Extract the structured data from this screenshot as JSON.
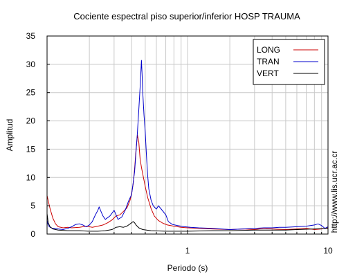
{
  "chart_data": {
    "type": "line",
    "title": "Cociente espectral piso superior/inferior  HOSP TRAUMA",
    "xlabel": "Periodo (s)",
    "ylabel": "Amplitud",
    "x_scale": "log",
    "xlim": [
      0.1,
      10
    ],
    "ylim": [
      0,
      35
    ],
    "x_ticks": [
      {
        "value": 1,
        "label": "1"
      },
      {
        "value": 10,
        "label": "10"
      }
    ],
    "y_ticks": [
      {
        "value": 0,
        "label": "0"
      },
      {
        "value": 5,
        "label": "5"
      },
      {
        "value": 10,
        "label": "10"
      },
      {
        "value": 15,
        "label": "15"
      },
      {
        "value": 20,
        "label": "20"
      },
      {
        "value": 25,
        "label": "25"
      },
      {
        "value": 30,
        "label": "30"
      },
      {
        "value": 35,
        "label": "35"
      }
    ],
    "grid": true,
    "legend_position": "top-right",
    "series": [
      {
        "name": "LONG",
        "color": "#cc0000",
        "points": [
          [
            0.1,
            6.8
          ],
          [
            0.105,
            4.5
          ],
          [
            0.11,
            2.8
          ],
          [
            0.115,
            1.8
          ],
          [
            0.12,
            1.3
          ],
          [
            0.13,
            1.1
          ],
          [
            0.14,
            1.2
          ],
          [
            0.15,
            1.1
          ],
          [
            0.17,
            1.2
          ],
          [
            0.19,
            1.4
          ],
          [
            0.21,
            1.2
          ],
          [
            0.23,
            1.4
          ],
          [
            0.25,
            1.6
          ],
          [
            0.27,
            2.0
          ],
          [
            0.29,
            2.5
          ],
          [
            0.31,
            3.2
          ],
          [
            0.33,
            3.4
          ],
          [
            0.35,
            4.0
          ],
          [
            0.37,
            4.6
          ],
          [
            0.38,
            5.3
          ],
          [
            0.39,
            6.0
          ],
          [
            0.4,
            7.2
          ],
          [
            0.41,
            8.8
          ],
          [
            0.42,
            11.5
          ],
          [
            0.43,
            15.0
          ],
          [
            0.44,
            17.5
          ],
          [
            0.45,
            16.2
          ],
          [
            0.46,
            13.2
          ],
          [
            0.47,
            11.8
          ],
          [
            0.48,
            10.6
          ],
          [
            0.5,
            8.4
          ],
          [
            0.52,
            6.5
          ],
          [
            0.55,
            4.5
          ],
          [
            0.58,
            3.2
          ],
          [
            0.62,
            2.4
          ],
          [
            0.67,
            1.9
          ],
          [
            0.72,
            1.6
          ],
          [
            0.8,
            1.4
          ],
          [
            0.9,
            1.2
          ],
          [
            1.0,
            1.1
          ],
          [
            1.2,
            1.0
          ],
          [
            1.5,
            0.9
          ],
          [
            2.0,
            0.8
          ],
          [
            2.5,
            0.9
          ],
          [
            3.0,
            0.8
          ],
          [
            3.5,
            1.0
          ],
          [
            4.0,
            0.9
          ],
          [
            5.0,
            0.8
          ],
          [
            6.0,
            0.9
          ],
          [
            7.0,
            1.0
          ],
          [
            8.0,
            0.8
          ],
          [
            9.0,
            0.9
          ],
          [
            10.0,
            1.1
          ]
        ]
      },
      {
        "name": "TRAN",
        "color": "#0000cc",
        "points": [
          [
            0.1,
            2.5
          ],
          [
            0.102,
            1.5
          ],
          [
            0.105,
            1.2
          ],
          [
            0.11,
            1.0
          ],
          [
            0.12,
            0.9
          ],
          [
            0.13,
            0.8
          ],
          [
            0.14,
            1.0
          ],
          [
            0.15,
            1.3
          ],
          [
            0.16,
            1.7
          ],
          [
            0.17,
            1.8
          ],
          [
            0.18,
            1.6
          ],
          [
            0.19,
            1.3
          ],
          [
            0.2,
            1.6
          ],
          [
            0.21,
            2.2
          ],
          [
            0.22,
            3.3
          ],
          [
            0.23,
            4.2
          ],
          [
            0.235,
            4.8
          ],
          [
            0.24,
            4.2
          ],
          [
            0.25,
            3.2
          ],
          [
            0.26,
            2.6
          ],
          [
            0.28,
            3.2
          ],
          [
            0.3,
            4.2
          ],
          [
            0.31,
            3.4
          ],
          [
            0.32,
            2.6
          ],
          [
            0.34,
            3.0
          ],
          [
            0.36,
            4.2
          ],
          [
            0.38,
            5.8
          ],
          [
            0.4,
            7.0
          ],
          [
            0.42,
            11.0
          ],
          [
            0.44,
            18.0
          ],
          [
            0.45,
            22.0
          ],
          [
            0.46,
            26.0
          ],
          [
            0.47,
            30.7
          ],
          [
            0.475,
            28.0
          ],
          [
            0.48,
            25.0
          ],
          [
            0.49,
            21.0
          ],
          [
            0.5,
            18.0
          ],
          [
            0.51,
            14.0
          ],
          [
            0.52,
            10.5
          ],
          [
            0.53,
            8.0
          ],
          [
            0.55,
            6.0
          ],
          [
            0.57,
            5.0
          ],
          [
            0.6,
            4.4
          ],
          [
            0.62,
            5.0
          ],
          [
            0.65,
            4.4
          ],
          [
            0.7,
            3.4
          ],
          [
            0.73,
            2.2
          ],
          [
            0.78,
            1.7
          ],
          [
            0.85,
            1.5
          ],
          [
            0.95,
            1.3
          ],
          [
            1.05,
            1.2
          ],
          [
            1.2,
            1.1
          ],
          [
            1.5,
            1.0
          ],
          [
            2.0,
            0.8
          ],
          [
            2.5,
            0.9
          ],
          [
            3.0,
            1.0
          ],
          [
            3.5,
            1.1
          ],
          [
            4.0,
            1.1
          ],
          [
            4.5,
            1.2
          ],
          [
            5.0,
            1.2
          ],
          [
            6.0,
            1.3
          ],
          [
            7.0,
            1.4
          ],
          [
            8.0,
            1.6
          ],
          [
            8.5,
            1.8
          ],
          [
            9.0,
            1.5
          ],
          [
            9.5,
            1.0
          ],
          [
            10.0,
            1.3
          ]
        ]
      },
      {
        "name": "VERT",
        "color": "#000000",
        "points": [
          [
            0.1,
            3.6
          ],
          [
            0.102,
            2.0
          ],
          [
            0.105,
            1.3
          ],
          [
            0.11,
            0.9
          ],
          [
            0.12,
            0.7
          ],
          [
            0.14,
            0.6
          ],
          [
            0.17,
            0.6
          ],
          [
            0.2,
            0.5
          ],
          [
            0.23,
            0.5
          ],
          [
            0.26,
            0.6
          ],
          [
            0.29,
            0.8
          ],
          [
            0.31,
            1.2
          ],
          [
            0.33,
            1.3
          ],
          [
            0.35,
            1.2
          ],
          [
            0.37,
            1.4
          ],
          [
            0.39,
            1.8
          ],
          [
            0.41,
            2.2
          ],
          [
            0.42,
            2.0
          ],
          [
            0.43,
            1.6
          ],
          [
            0.45,
            1.1
          ],
          [
            0.48,
            0.8
          ],
          [
            0.55,
            0.6
          ],
          [
            0.7,
            0.5
          ],
          [
            1.0,
            0.5
          ],
          [
            1.5,
            0.6
          ],
          [
            2.0,
            0.6
          ],
          [
            3.0,
            0.7
          ],
          [
            4.0,
            0.7
          ],
          [
            5.0,
            0.7
          ],
          [
            6.0,
            0.8
          ],
          [
            8.0,
            0.9
          ],
          [
            10.0,
            1.0
          ]
        ]
      }
    ]
  },
  "credit_text": "http://www.lis.ucr.ac.cr"
}
